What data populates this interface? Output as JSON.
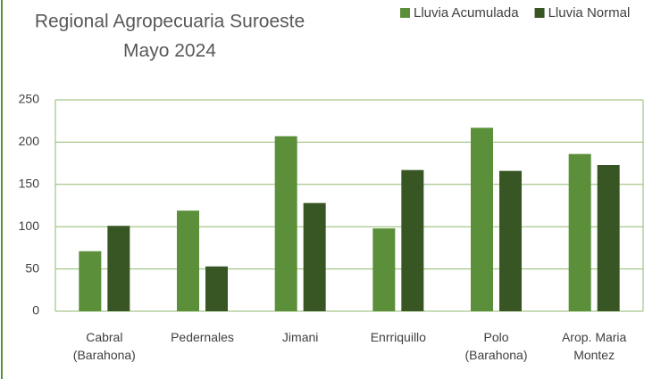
{
  "chart_data": {
    "type": "bar",
    "title": "Regional Agropecuaria Suroeste",
    "subtitle": "Mayo 2024",
    "categories": [
      "Cabral (Barahona)",
      "Pedernales",
      "Jimani",
      "Enrriquillo",
      "Polo (Barahona)",
      "Arop. Maria Montez"
    ],
    "series": [
      {
        "name": "Lluvia Acumulada",
        "color": "#5b8f3a",
        "values": [
          71,
          119,
          207,
          98,
          217,
          186
        ]
      },
      {
        "name": "Lluvia Normal",
        "color": "#375623",
        "values": [
          101,
          53,
          128,
          167,
          166,
          173
        ]
      }
    ],
    "ylim": [
      0,
      250
    ],
    "yticks": [
      0,
      50,
      100,
      150,
      200,
      250
    ],
    "grid": true,
    "legend": "top-right"
  }
}
